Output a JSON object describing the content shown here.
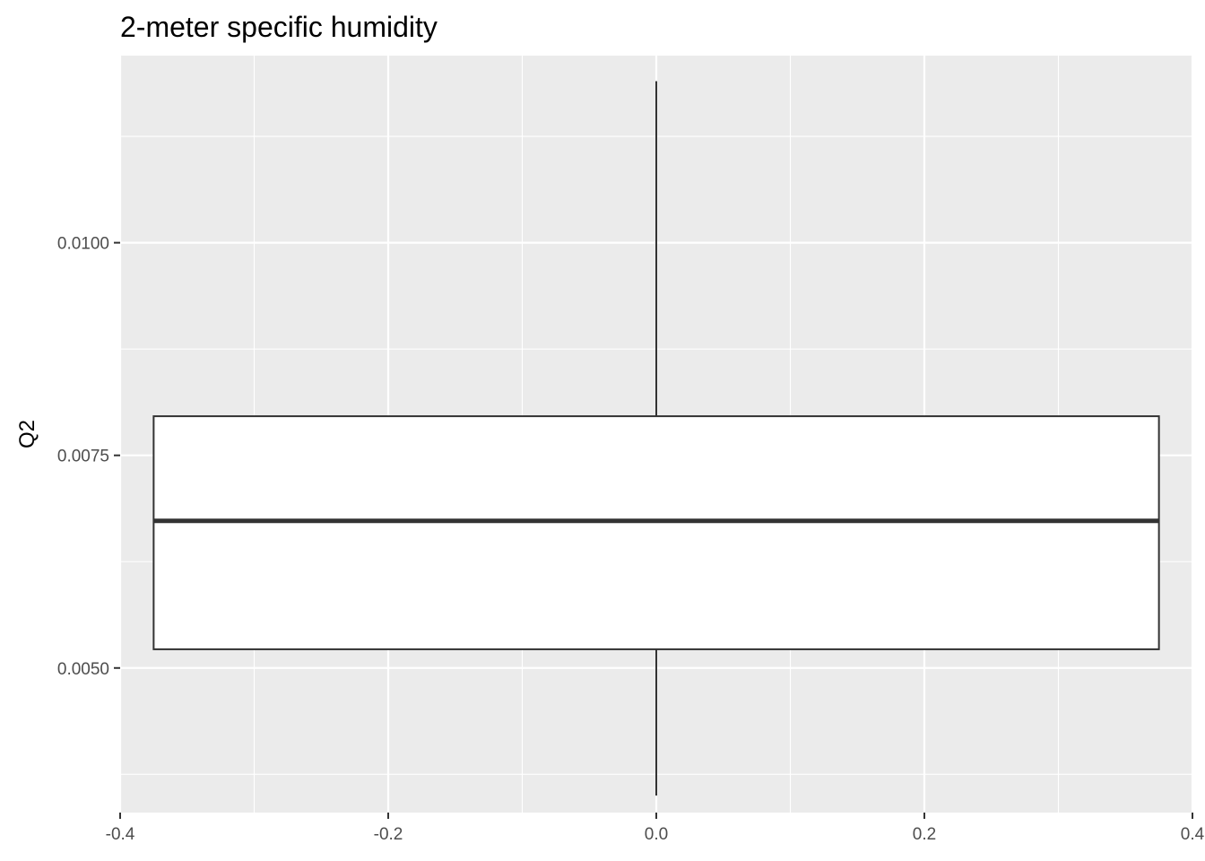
{
  "chart_data": {
    "type": "boxplot",
    "title": "2-meter specific humidity",
    "xlabel": "",
    "ylabel": "Q2",
    "xlim": [
      -0.4,
      0.4
    ],
    "ylim": [
      0.0033,
      0.0122
    ],
    "x_ticks": [
      {
        "value": -0.4,
        "label": "-0.4"
      },
      {
        "value": -0.2,
        "label": "-0.2"
      },
      {
        "value": 0.0,
        "label": "0.0"
      },
      {
        "value": 0.2,
        "label": "0.2"
      },
      {
        "value": 0.4,
        "label": "0.4"
      }
    ],
    "y_ticks": [
      {
        "value": 0.005,
        "label": "0.0050"
      },
      {
        "value": 0.0075,
        "label": "0.0075"
      },
      {
        "value": 0.01,
        "label": "0.0100"
      }
    ],
    "x_minor": [
      -0.3,
      -0.1,
      0.1,
      0.3
    ],
    "y_minor": [
      0.00375,
      0.00625,
      0.00875,
      0.01125
    ],
    "box": {
      "x_left": -0.375,
      "x_right": 0.375,
      "center": 0.0,
      "whisker_low": 0.0035,
      "q1": 0.00522,
      "median": 0.00673,
      "q3": 0.00796,
      "whisker_high": 0.0119
    },
    "colors": {
      "panel": "#ebebeb",
      "grid": "#ffffff",
      "box_fill": "#ffffff",
      "box_line": "#333333",
      "tick": "#333333"
    }
  }
}
